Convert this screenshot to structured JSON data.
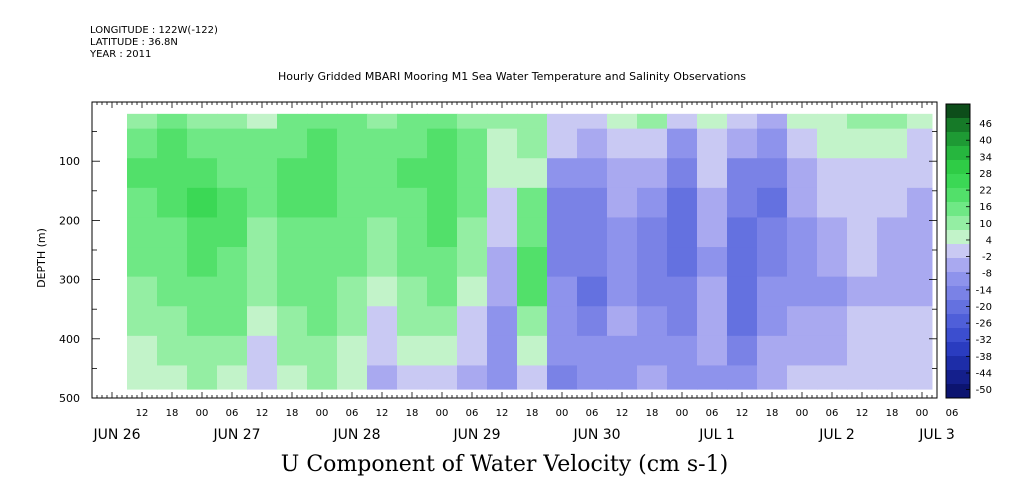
{
  "header": {
    "longitude": "LONGITUDE : 122W(-122)",
    "latitude": "LATITUDE : 36.8N",
    "year": "YEAR : 2011"
  },
  "chart_data": {
    "type": "heatmap",
    "title": "Hourly Gridded MBARI Mooring M1 Sea Water Temperature and Salinity Observations",
    "xlabel": "U Component of Water Velocity (cm s-1)",
    "ylabel": "DEPTH (m)",
    "x_hour_ticks": [
      "12",
      "18",
      "00",
      "06",
      "12",
      "18",
      "00",
      "06",
      "12",
      "18",
      "00",
      "06",
      "12",
      "18",
      "00",
      "06",
      "12",
      "18",
      "00",
      "06",
      "12",
      "18",
      "00",
      "06",
      "12",
      "18",
      "00",
      "06"
    ],
    "x_day_labels": [
      "JUN 26",
      "JUN 27",
      "JUN 28",
      "JUN 29",
      "JUN 30",
      "JUL 1",
      "JUL 2",
      "JUL 3"
    ],
    "y_ticks": [
      100,
      200,
      300,
      400,
      500
    ],
    "ylim": [
      500,
      0
    ],
    "colorbar_ticks": [
      46,
      40,
      34,
      28,
      22,
      16,
      10,
      4,
      -2,
      -8,
      -14,
      -20,
      -26,
      -32,
      -38,
      -44,
      -50
    ],
    "colorbar_levels": [
      "#0d4d1a",
      "#167a28",
      "#1e9a34",
      "#26b63e",
      "#2fcc46",
      "#3bd855",
      "#52e06a",
      "#6fe885",
      "#94eea3",
      "#c2f3c9",
      "#c9c9f3",
      "#a9a9f0",
      "#8e93ec",
      "#7a82e6",
      "#6471e0",
      "#4f5fd9",
      "#3c4ecf",
      "#2a3cc0",
      "#1d2da8",
      "#141f8c",
      "#0c1470"
    ],
    "columns_6h_u_cm_s": [
      [
        8,
        14,
        16,
        14,
        12,
        10,
        8,
        6,
        4,
        2
      ],
      [
        10,
        16,
        18,
        16,
        14,
        12,
        10,
        8,
        6,
        4
      ],
      [
        8,
        14,
        18,
        20,
        18,
        16,
        12,
        10,
        8,
        6
      ],
      [
        6,
        12,
        14,
        16,
        16,
        14,
        12,
        10,
        6,
        2
      ],
      [
        4,
        10,
        12,
        10,
        8,
        8,
        6,
        4,
        0,
        -4
      ],
      [
        10,
        14,
        16,
        16,
        14,
        12,
        10,
        8,
        6,
        4
      ],
      [
        12,
        16,
        18,
        16,
        14,
        14,
        12,
        10,
        8,
        6
      ],
      [
        10,
        12,
        14,
        14,
        12,
        10,
        8,
        6,
        4,
        2
      ],
      [
        8,
        12,
        12,
        10,
        8,
        6,
        2,
        -2,
        -4,
        -6
      ],
      [
        10,
        14,
        16,
        14,
        12,
        10,
        8,
        6,
        2,
        -2
      ],
      [
        12,
        16,
        18,
        18,
        16,
        14,
        12,
        8,
        4,
        0
      ],
      [
        8,
        10,
        12,
        10,
        8,
        6,
        4,
        0,
        -4,
        -8
      ],
      [
        6,
        4,
        2,
        0,
        -4,
        -6,
        -8,
        -10,
        -10,
        -12
      ],
      [
        8,
        6,
        4,
        10,
        14,
        18,
        16,
        8,
        2,
        -4
      ],
      [
        0,
        -4,
        -10,
        -14,
        -16,
        -14,
        -12,
        -10,
        -12,
        -14
      ],
      [
        -2,
        -8,
        -12,
        -14,
        -16,
        -16,
        -18,
        -14,
        -10,
        -12
      ],
      [
        2,
        -4,
        -6,
        -8,
        -10,
        -12,
        -10,
        -8,
        -10,
        -12
      ],
      [
        6,
        0,
        -6,
        -10,
        -14,
        -16,
        -14,
        -12,
        -10,
        -8
      ],
      [
        -4,
        -10,
        -14,
        -18,
        -20,
        -18,
        -16,
        -14,
        -12,
        -10
      ],
      [
        4,
        0,
        -4,
        -6,
        -8,
        -10,
        -8,
        -6,
        -8,
        -10
      ],
      [
        -2,
        -8,
        -14,
        -16,
        -18,
        -20,
        -22,
        -18,
        -14,
        -12
      ],
      [
        -6,
        -12,
        -16,
        -18,
        -16,
        -14,
        -12,
        -10,
        -8,
        -6
      ],
      [
        2,
        -2,
        -6,
        -8,
        -10,
        -12,
        -10,
        -8,
        -6,
        -4
      ],
      [
        4,
        2,
        0,
        -4,
        -6,
        -8,
        -10,
        -8,
        -6,
        -4
      ],
      [
        8,
        4,
        0,
        -2,
        -4,
        -4,
        -6,
        -4,
        -2,
        0
      ],
      [
        6,
        2,
        -2,
        -4,
        -6,
        -8,
        -6,
        -4,
        -2,
        -2
      ],
      [
        4,
        0,
        -4,
        -6,
        -8,
        -8,
        -6,
        -4,
        -2,
        0
      ]
    ],
    "column_start_hour": 12,
    "column_step_hours": 6,
    "depth_bins_m": [
      20,
      70,
      120,
      170,
      220,
      270,
      320,
      370,
      420,
      470
    ]
  }
}
